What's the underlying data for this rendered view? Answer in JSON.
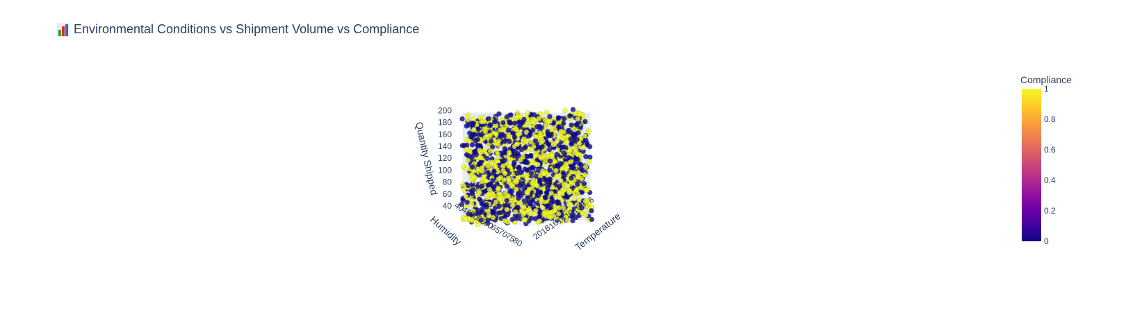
{
  "chart_data": {
    "type": "scatter",
    "subtype": "scatter3d",
    "title": "Environmental Conditions vs Shipment Volume vs Compliance",
    "title_icon": "bar-chart-icon",
    "axes": {
      "x": {
        "label": "Humidity",
        "ticks": [
          "40",
          "45",
          "50",
          "55",
          "60",
          "65",
          "70",
          "75",
          "80"
        ],
        "range": [
          40,
          80
        ]
      },
      "y": {
        "label": "Temperature",
        "ticks": [
          "20",
          "18",
          "16",
          "14",
          "12",
          "10",
          "8",
          "6"
        ],
        "range": [
          5,
          20
        ]
      },
      "z": {
        "label": "Quantity Shipped",
        "ticks": [
          "40",
          "60",
          "80",
          "100",
          "120",
          "140",
          "160",
          "180",
          "200"
        ],
        "range": [
          40,
          200
        ]
      }
    },
    "color_variable": "Compliance",
    "colorbar": {
      "title": "Compliance",
      "ticks": [
        "0",
        "0.2",
        "0.4",
        "0.6",
        "0.8",
        "1"
      ],
      "range": [
        0,
        1
      ],
      "colorscale": [
        "#0d0887",
        "#46039f",
        "#7201a8",
        "#9c179e",
        "#bd3786",
        "#d8576b",
        "#ed7953",
        "#fb9f3a",
        "#fdca26",
        "#f0f921"
      ]
    },
    "marker_colors": {
      "compliant": "#f0f921",
      "non_compliant": "#0d0887"
    },
    "point_count": 1800,
    "grid": true,
    "legend": "colorbar-right"
  }
}
